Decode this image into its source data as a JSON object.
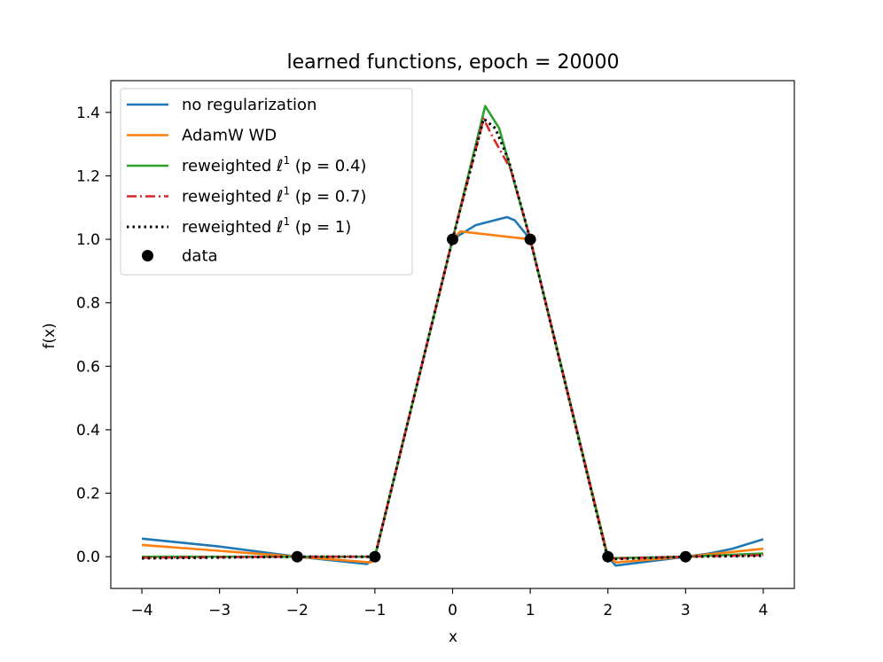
{
  "chart_data": {
    "type": "line",
    "title": "learned functions, epoch = 20000",
    "xlabel": "x",
    "ylabel": "f(x)",
    "xlim": [
      -4.4,
      4.4
    ],
    "ylim": [
      -0.1,
      1.5
    ],
    "xticks": [
      -4,
      -3,
      -2,
      -1,
      0,
      1,
      2,
      3,
      4
    ],
    "xtick_labels": [
      "−4",
      "−3",
      "−2",
      "−1",
      "0",
      "1",
      "2",
      "3",
      "4"
    ],
    "yticks": [
      0.0,
      0.2,
      0.4,
      0.6,
      0.8,
      1.0,
      1.2,
      1.4
    ],
    "ytick_labels": [
      "0.0",
      "0.2",
      "0.4",
      "0.6",
      "0.8",
      "1.0",
      "1.2",
      "1.4"
    ],
    "legend_position": "top-left",
    "series": [
      {
        "name": "no regularization",
        "color": "#1f77b4",
        "style": "solid",
        "x": [
          -4,
          -3,
          -2,
          -1.1,
          -1,
          0,
          0.3,
          0.7,
          0.8,
          1,
          2,
          2.1,
          3,
          3.3,
          3.6,
          4
        ],
        "y": [
          0.057,
          0.032,
          0.0,
          -0.023,
          0.0,
          1.0,
          1.045,
          1.07,
          1.06,
          1.0,
          0.0,
          -0.028,
          0.0,
          0.01,
          0.025,
          0.055
        ]
      },
      {
        "name": "AdamW WD",
        "color": "#ff7f0e",
        "style": "solid",
        "x": [
          -4,
          -2,
          -1.05,
          -1,
          0,
          0.1,
          1,
          2,
          2.1,
          3,
          4
        ],
        "y": [
          0.037,
          0.0,
          -0.018,
          0.0,
          1.0,
          1.025,
          1.0,
          0.0,
          -0.018,
          0.0,
          0.025
        ]
      },
      {
        "name": "reweighted ℓ¹ (p = 0.4)",
        "label_main": "reweighted ",
        "label_ell": "ℓ",
        "label_sup": "1",
        "label_tail": " (p = 0.4)",
        "color": "#2ca02c",
        "style": "solid",
        "x": [
          -4,
          -2,
          -1,
          0,
          0.42,
          0.6,
          1,
          2,
          3,
          4
        ],
        "y": [
          0.0,
          0.0,
          0.0,
          1.0,
          1.42,
          1.35,
          1.0,
          -0.005,
          0.0,
          0.01
        ]
      },
      {
        "name": "reweighted ℓ¹ (p = 0.7)",
        "label_main": "reweighted ",
        "label_ell": "ℓ",
        "label_sup": "1",
        "label_tail": " (p = 0.7)",
        "color": "#d62728",
        "style": "dashdot",
        "x": [
          -4,
          -2,
          -1,
          0,
          0.4,
          0.5,
          0.75,
          1,
          2,
          3,
          4
        ],
        "y": [
          -0.003,
          0.0,
          0.0,
          1.0,
          1.38,
          1.33,
          1.22,
          1.0,
          -0.006,
          0.0,
          0.005
        ]
      },
      {
        "name": "reweighted ℓ¹ (p = 1)",
        "label_main": "reweighted ",
        "label_ell": "ℓ",
        "label_sup": "1",
        "label_tail": " (p = 1)",
        "color": "#000000",
        "style": "dotted",
        "x": [
          -4,
          -2,
          -1,
          0,
          0.4,
          0.55,
          0.72,
          1,
          2,
          3,
          4
        ],
        "y": [
          -0.005,
          0.0,
          0.0,
          1.0,
          1.38,
          1.35,
          1.25,
          1.0,
          -0.008,
          0.0,
          0.003
        ]
      }
    ],
    "data_points": {
      "name": "data",
      "color": "#000000",
      "x": [
        -2,
        -1,
        0,
        1,
        2,
        3
      ],
      "y": [
        0,
        0,
        1,
        1,
        0,
        0
      ]
    }
  }
}
